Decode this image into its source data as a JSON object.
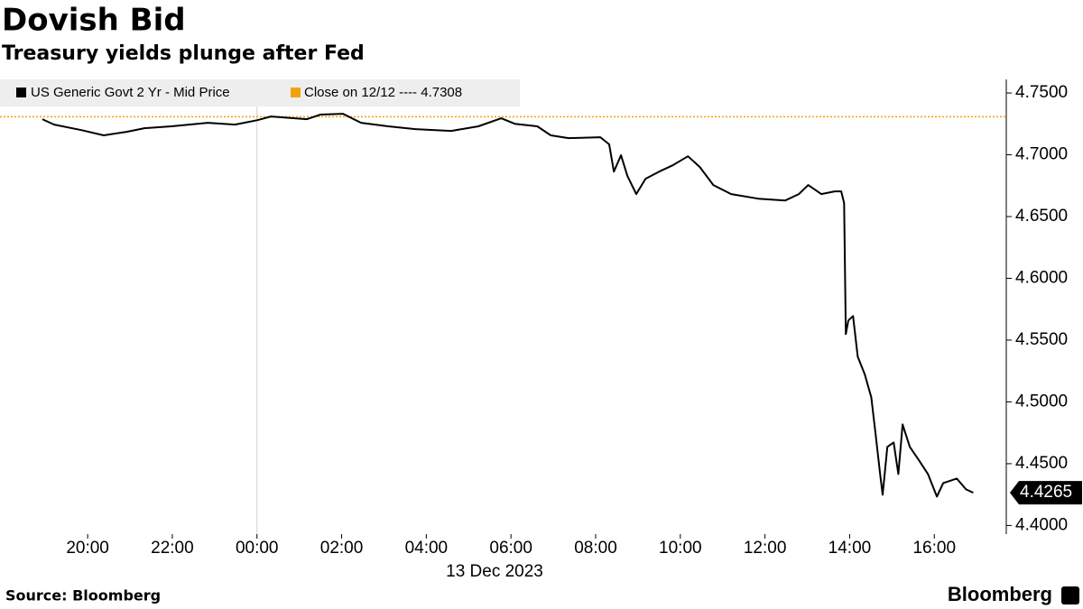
{
  "chart_data": {
    "type": "line",
    "title": "Dovish Bid",
    "subtitle": "Treasury yields plunge after Fed",
    "x_label": "13 Dec 2023",
    "source": "Source: Bloomberg",
    "logo": "Bloomberg",
    "x": [
      18.93,
      19.21,
      19.85,
      20.38,
      20.92,
      21.34,
      21.98,
      22.84,
      23.48,
      24.01,
      24.33,
      25.18,
      25.5,
      26.03,
      26.46,
      27.1,
      27.74,
      28.59,
      29.23,
      29.77,
      30.09,
      30.62,
      30.94,
      31.36,
      32.11,
      32.32,
      32.43,
      32.6,
      32.75,
      32.96,
      33.18,
      33.5,
      33.82,
      34.18,
      34.46,
      34.78,
      35.2,
      35.84,
      36.48,
      36.8,
      37.02,
      37.33,
      37.65,
      37.8,
      37.87,
      37.91,
      37.97,
      38.08,
      38.19,
      38.36,
      38.51,
      38.61,
      38.72,
      38.78,
      38.89,
      39.04,
      39.15,
      39.25,
      39.42,
      39.64,
      39.85,
      40.06,
      40.21,
      40.53,
      40.75,
      40.92
    ],
    "series": [
      {
        "name": "US Generic Govt 2 Yr - Mid Price",
        "color": "#000000",
        "values": [
          4.7288,
          4.7244,
          4.72,
          4.7157,
          4.7186,
          4.7215,
          4.723,
          4.7259,
          4.7244,
          4.728,
          4.731,
          4.7288,
          4.7325,
          4.7332,
          4.7259,
          4.723,
          4.7208,
          4.7193,
          4.723,
          4.7295,
          4.7251,
          4.723,
          4.7157,
          4.7135,
          4.7142,
          4.7084,
          4.6864,
          4.6996,
          4.6828,
          4.6682,
          4.6806,
          4.6864,
          4.6915,
          4.6988,
          4.6901,
          4.6755,
          4.6682,
          4.6645,
          4.663,
          4.6682,
          4.6755,
          4.6682,
          4.6704,
          4.6704,
          4.6609,
          4.5549,
          4.5659,
          4.5695,
          4.5366,
          4.522,
          4.5038,
          4.4745,
          4.4416,
          4.4248,
          4.4636,
          4.4672,
          4.4416,
          4.4818,
          4.4636,
          4.4526,
          4.4416,
          4.4234,
          4.4343,
          4.438,
          4.4292,
          4.4265
        ],
        "last_label": "4.4265"
      }
    ],
    "reference_line": {
      "label": "Close on 12/12 ---- 4.7308",
      "value": 4.7308,
      "color": "#f0a30a"
    },
    "xlim": [
      17.93,
      41.7
    ],
    "xticks": [
      {
        "value": 20,
        "label": "20:00"
      },
      {
        "value": 22,
        "label": "22:00"
      },
      {
        "value": 24,
        "label": "00:00"
      },
      {
        "value": 26,
        "label": "02:00"
      },
      {
        "value": 28,
        "label": "04:00"
      },
      {
        "value": 30,
        "label": "06:00"
      },
      {
        "value": 32,
        "label": "08:00"
      },
      {
        "value": 34,
        "label": "10:00"
      },
      {
        "value": 36,
        "label": "12:00"
      },
      {
        "value": 38,
        "label": "14:00"
      },
      {
        "value": 40,
        "label": "16:00"
      }
    ],
    "day_divider": 24,
    "ylim": [
      4.393,
      4.761
    ],
    "yticks": [
      {
        "value": 4.4,
        "label": "4.4000"
      },
      {
        "value": 4.45,
        "label": "4.4500"
      },
      {
        "value": 4.5,
        "label": "4.5000"
      },
      {
        "value": 4.55,
        "label": "4.5500"
      },
      {
        "value": 4.6,
        "label": "4.6000"
      },
      {
        "value": 4.65,
        "label": "4.6500"
      },
      {
        "value": 4.7,
        "label": "4.7000"
      },
      {
        "value": 4.75,
        "label": "4.7500"
      }
    ]
  }
}
